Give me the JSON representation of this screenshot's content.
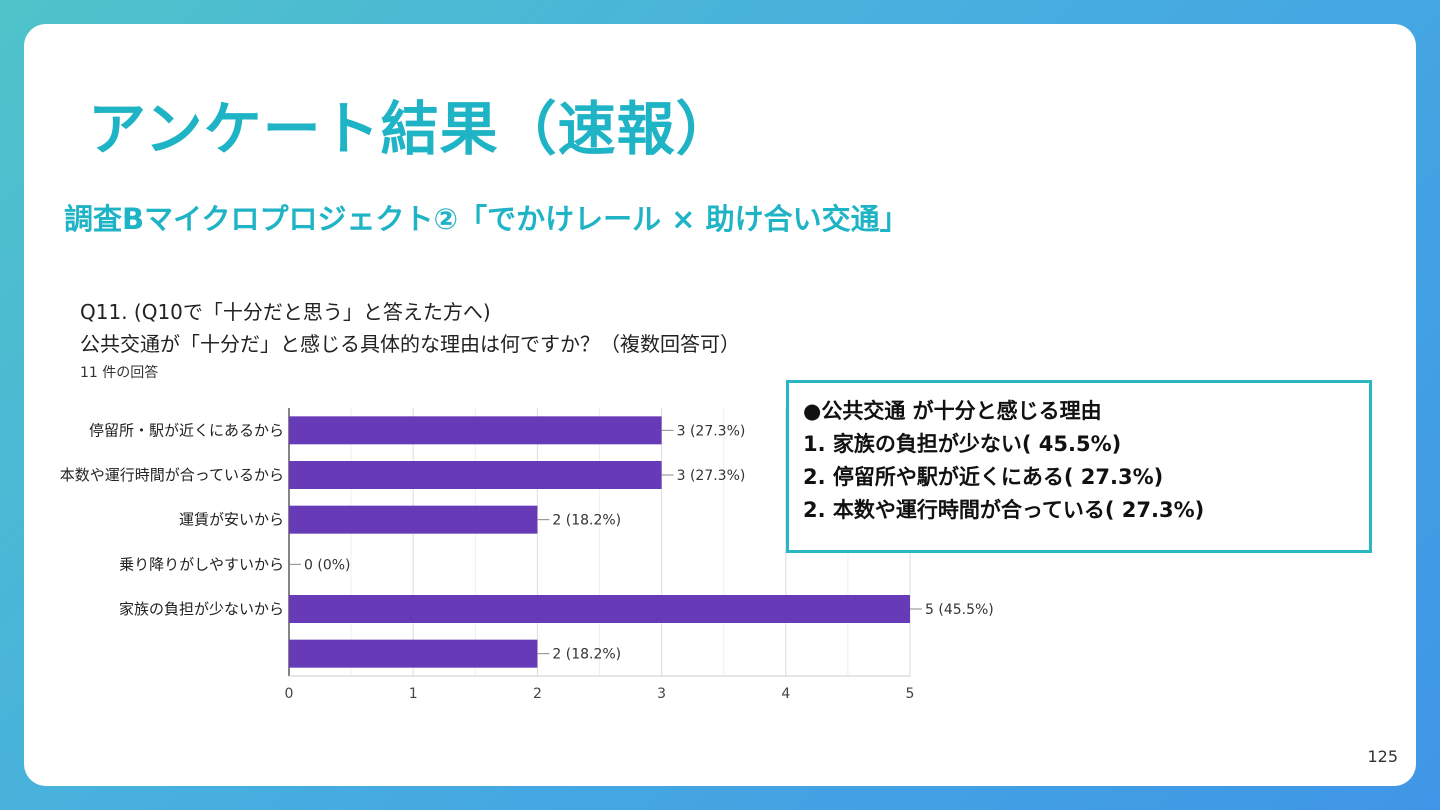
{
  "slide": {
    "title": "アンケート結果（速報）",
    "subtitle": "調査Bマイクロプロジェクト②「でかけレール × 助け合い交通」",
    "question_line1": "Q11. (Q10で「十分だと思う」と答えた方へ)",
    "question_line2": "公共交通が「十分だ」と感じる具体的な理由は何ですか？（複数回答可）",
    "responses": "11 件の回答",
    "page_number": "125"
  },
  "summary": {
    "heading": "●公共交通 が十分と感じる理由",
    "items": [
      "1. 家族の負担が少ない( 45.5%)",
      "2. 停留所や駅が近くにある( 27.3%)",
      "2. 本数や運行時間が合っている( 27.3%)"
    ]
  },
  "chart_data": {
    "type": "bar",
    "orientation": "horizontal",
    "categories": [
      "停留所・駅が近くにあるから",
      "本数や運行時間が合っているから",
      "運賃が安いから",
      "乗り降りがしやすいから",
      "家族の負担が少ないから",
      ""
    ],
    "values": [
      3,
      3,
      2,
      0,
      5,
      2
    ],
    "value_labels": [
      "3 (27.3%)",
      "3 (27.3%)",
      "2 (18.2%)",
      "0 (0%)",
      "5 (45.5%)",
      "2 (18.2%)"
    ],
    "xlim": [
      0,
      5
    ],
    "xticks": [
      "0",
      "1",
      "2",
      "3",
      "4",
      "5"
    ],
    "bar_color": "#673ab7",
    "grid": true,
    "title": "",
    "xlabel": "",
    "ylabel": ""
  }
}
